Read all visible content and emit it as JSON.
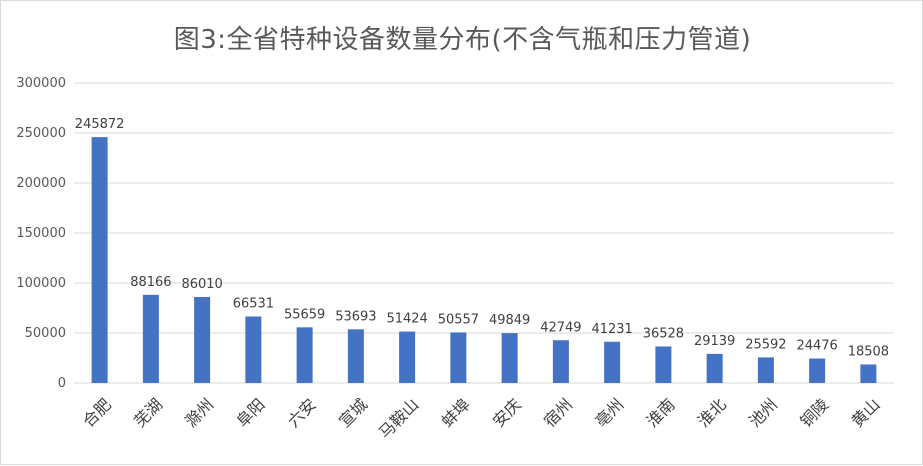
{
  "chart_data": {
    "type": "bar",
    "title": "图3:全省特种设备数量分布(不含气瓶和压力管道)",
    "categories": [
      "合肥",
      "芜湖",
      "滁州",
      "阜阳",
      "六安",
      "宣城",
      "马鞍山",
      "蚌埠",
      "安庆",
      "宿州",
      "亳州",
      "淮南",
      "淮北",
      "池州",
      "铜陵",
      "黄山"
    ],
    "values": [
      245872,
      88166,
      86010,
      66531,
      55659,
      53693,
      51424,
      50557,
      49849,
      42749,
      41231,
      36528,
      29139,
      25592,
      24476,
      18508
    ],
    "data_labels": [
      "245872",
      "88166",
      "86010",
      "66531",
      "55659",
      "53693",
      "51424",
      "50557",
      "49849",
      "42749",
      "41231",
      "36528",
      "29139",
      "25592",
      "24476",
      "18508"
    ],
    "yticks": [
      "0",
      "50000",
      "100000",
      "150000",
      "200000",
      "250000",
      "300000"
    ],
    "ylim": [
      0,
      300000
    ],
    "grid": true,
    "bar_color": "#4472c4",
    "legend": "none"
  }
}
